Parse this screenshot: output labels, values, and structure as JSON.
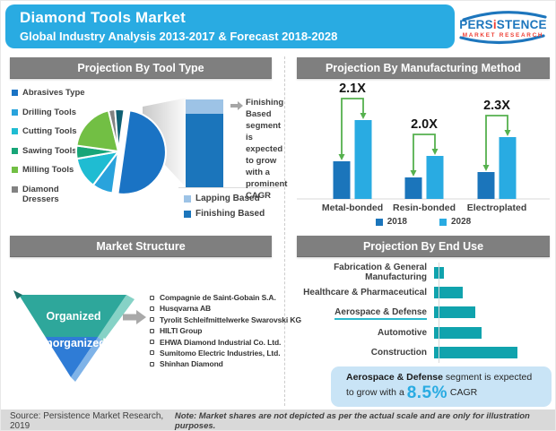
{
  "header": {
    "title": "Diamond Tools Market",
    "subtitle": "Global Industry Analysis 2013-2017 & Forecast 2018-2028",
    "bar_color": "#29abe2",
    "logo": {
      "name_pre": "PERS",
      "name_i": "i",
      "name_post": "STENCE",
      "tagline": "MARKET RESEARCH",
      "blue": "#1d76bd",
      "red": "#ee4036"
    }
  },
  "panels": {
    "tool_type": {
      "title": "Projection By Tool Type",
      "annotation": "Finishing Based segment is expected to grow with a prominent CAGR"
    },
    "manufacturing": {
      "title": "Projection By Manufacturing Method"
    },
    "market_structure": {
      "title": "Market Structure",
      "funnel": [
        {
          "label": "Organized",
          "color": "#2ea79b",
          "bevel": "#86d2c6"
        },
        {
          "label": "Unorganized",
          "color": "#2f7cd6",
          "bevel": "#7fb3e8"
        }
      ],
      "companies": [
        "Compagnie de Saint-Gobain S.A.",
        "Husqvarna AB",
        "Tyrolit Schleifmittelwerke Swarovski KG",
        "HILTI Group",
        "EHWA Diamond Industrial Co. Ltd.",
        "Sumitomo Electric Industries, Ltd.",
        "Shinhan Diamond"
      ]
    },
    "end_use": {
      "title": "Projection By End Use",
      "callout": {
        "bold": "Aerospace & Defense",
        "text1": " segment is expected",
        "text2": "to grow with a ",
        "value": "8.5%",
        "text3": " CAGR"
      }
    }
  },
  "footer": {
    "source": "Source: Persistence Market Research, 2019",
    "note": "Note: Market shares are not depicted as per the actual scale and are only for illustration purposes."
  },
  "chart_data": [
    {
      "id": "tool-type-pie",
      "type": "pie",
      "start_angle_deg": 8,
      "slices": [
        {
          "label": "Abrasives Type",
          "value": 50,
          "color": "#1a73c4",
          "exploded": true
        },
        {
          "label": "Drilling Tools",
          "value": 8,
          "color": "#29a3dc"
        },
        {
          "label": "Cutting Tools",
          "value": 12,
          "color": "#1fbcd2"
        },
        {
          "label": "Sawing Tools",
          "value": 5,
          "color": "#17a578"
        },
        {
          "label": "Milling Tools",
          "value": 19,
          "color": "#72bf44"
        },
        {
          "label": "Diamond Dressers",
          "value": 2.5,
          "color": "#828282"
        },
        {
          "label": "",
          "value": 3.5,
          "color": "#0e5f73"
        }
      ]
    },
    {
      "id": "lapping-finishing-stacked-bar",
      "type": "bar",
      "stacked": true,
      "segments": [
        {
          "label": "Lapping Based",
          "value": 16,
          "color": "#9dc3e6"
        },
        {
          "label": "Finishing Based",
          "value": 84,
          "color": "#1b75bb"
        }
      ]
    },
    {
      "id": "manufacturing-method-grouped-bar",
      "type": "bar",
      "categories": [
        "Metal-bonded",
        "Resin-bonded",
        "Electroplated"
      ],
      "series": [
        {
          "name": "2018",
          "color": "#1b75bb",
          "values": [
            42,
            24,
            30
          ]
        },
        {
          "name": "2028",
          "color": "#29abe2",
          "values": [
            88,
            48,
            69
          ]
        }
      ],
      "multipliers": [
        "2.1X",
        "2.0X",
        "2.3X"
      ],
      "ylim": [
        0,
        100
      ],
      "grid": false,
      "legend_position": "bottom"
    },
    {
      "id": "end-use-horizontal-bar",
      "type": "bar",
      "orientation": "horizontal",
      "categories": [
        "Fabrication & General Manufacturing",
        "Healthcare & Pharmaceutical",
        "Aerospace & Defense",
        "Automotive",
        "Construction"
      ],
      "values": [
        12,
        34,
        49,
        57,
        100
      ],
      "bar_color": "#10a3ad",
      "highlight_category": "Aerospace & Defense",
      "xlim": [
        0,
        110
      ]
    }
  ]
}
